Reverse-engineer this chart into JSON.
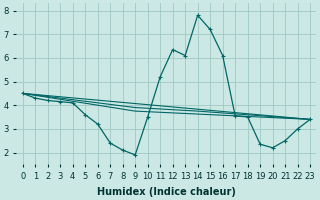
{
  "xlabel": "Humidex (Indice chaleur)",
  "bg_color": "#cce8e4",
  "grid_color": "#a0c8c4",
  "line_color": "#006666",
  "xlim": [
    -0.5,
    23.5
  ],
  "ylim": [
    1.5,
    8.3
  ],
  "yticks": [
    2,
    3,
    4,
    5,
    6,
    7,
    8
  ],
  "xticks": [
    0,
    1,
    2,
    3,
    4,
    5,
    6,
    7,
    8,
    9,
    10,
    11,
    12,
    13,
    14,
    15,
    16,
    17,
    18,
    19,
    20,
    21,
    22,
    23
  ],
  "series1_x": [
    0,
    1,
    2,
    3,
    4,
    5,
    6,
    7,
    8,
    9,
    10,
    11,
    12,
    13,
    14,
    15,
    16,
    17,
    18,
    19,
    20,
    21,
    22,
    23
  ],
  "series1_y": [
    4.5,
    4.3,
    4.2,
    4.15,
    4.1,
    3.6,
    3.2,
    2.4,
    2.1,
    1.9,
    3.5,
    5.2,
    6.35,
    6.1,
    7.8,
    7.2,
    6.1,
    3.55,
    3.5,
    2.35,
    2.2,
    2.5,
    3.0,
    3.4
  ],
  "series2_x": [
    0,
    23
  ],
  "series2_y": [
    4.5,
    3.4
  ],
  "series3_x": [
    0,
    9,
    23
  ],
  "series3_y": [
    4.5,
    3.75,
    3.4
  ],
  "series4_x": [
    0,
    9,
    14,
    23
  ],
  "series4_y": [
    4.5,
    3.9,
    3.75,
    3.4
  ],
  "xlabel_fontsize": 7,
  "tick_fontsize": 6
}
